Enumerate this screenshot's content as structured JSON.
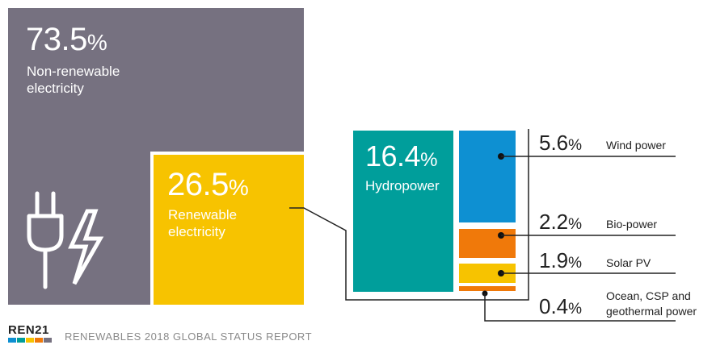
{
  "chart_data": {
    "type": "treemap",
    "colors": {
      "non_renewable": "#767180",
      "renewable": "#f7c300",
      "hydropower": "#009e9b",
      "wind": "#0e90d2",
      "bio": "#f0790a",
      "solar": "#f7c300",
      "ocean": "#f0790a"
    },
    "segments": [
      {
        "name": "Non-renewable electricity",
        "value": 73.5,
        "pct_label": "73.5",
        "pct_unit": "%",
        "label_lines": [
          "Non-renewable",
          "electricity"
        ]
      },
      {
        "name": "Renewable electricity",
        "value": 26.5,
        "pct_label": "26.5",
        "pct_unit": "%",
        "label_lines": [
          "Renewable",
          "electricity"
        ]
      }
    ],
    "renewable_breakdown": [
      {
        "name": "Hydropower",
        "value": 16.4,
        "pct_label": "16.4",
        "pct_unit": "%",
        "label": "Hydropower"
      },
      {
        "name": "Wind power",
        "value": 5.6,
        "pct_label": "5.6",
        "pct_unit": "%",
        "label_lines": [
          "Wind power"
        ]
      },
      {
        "name": "Bio-power",
        "value": 2.2,
        "pct_label": "2.2",
        "pct_unit": "%",
        "label_lines": [
          "Bio-power"
        ]
      },
      {
        "name": "Solar PV",
        "value": 1.9,
        "pct_label": "1.9",
        "pct_unit": "%",
        "label_lines": [
          "Solar PV"
        ]
      },
      {
        "name": "Ocean, CSP and geothermal power",
        "value": 0.4,
        "pct_label": "0.4",
        "pct_unit": "%",
        "label_lines": [
          "Ocean, CSP and",
          "geothermal power"
        ]
      }
    ]
  },
  "icons": [
    "plug-icon",
    "lightning-bolt-icon"
  ],
  "footer": {
    "logo_text": "REN21",
    "report_title": "RENEWABLES 2018 GLOBAL STATUS REPORT"
  }
}
